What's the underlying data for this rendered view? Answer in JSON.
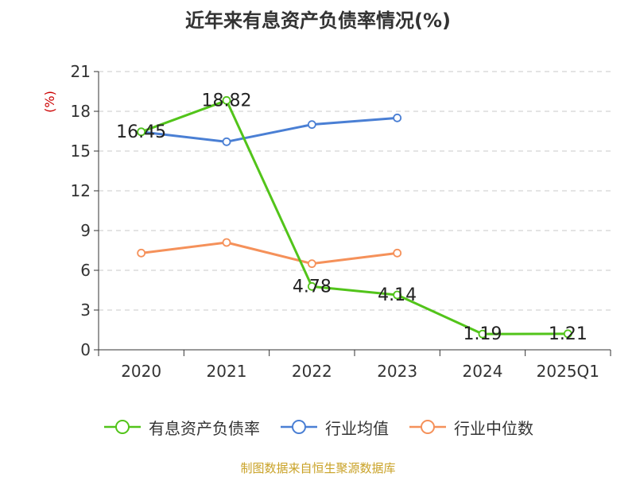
{
  "chart_data": {
    "type": "line",
    "title": "近年来有息资产负债率情况(%)",
    "ylabel": "(%)",
    "categories": [
      "2020",
      "2021",
      "2022",
      "2023",
      "2024",
      "2025Q1"
    ],
    "ylim": [
      0,
      21
    ],
    "yticks": [
      0,
      3,
      6,
      9,
      12,
      15,
      18,
      21
    ],
    "grid": true,
    "legend_position": "bottom",
    "series": [
      {
        "name": "有息资产负债率",
        "color": "#52c41a",
        "values": [
          16.45,
          18.82,
          4.78,
          4.14,
          1.19,
          1.21
        ],
        "labels": [
          "16.45",
          "18.82",
          "4.78",
          "4.14",
          "1.19",
          "1.21"
        ]
      },
      {
        "name": "行业均值",
        "color": "#4a7fd4",
        "values": [
          16.45,
          15.7,
          17.0,
          17.5,
          null,
          null
        ]
      },
      {
        "name": "行业中位数",
        "color": "#f5915a",
        "values": [
          7.3,
          8.1,
          6.5,
          7.3,
          null,
          null
        ]
      }
    ]
  },
  "source": "制图数据来自恒生聚源数据库"
}
